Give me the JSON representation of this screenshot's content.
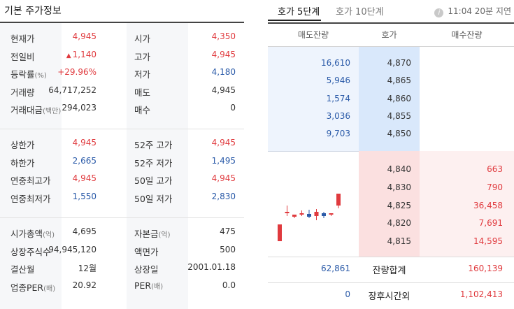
{
  "left": {
    "title": "기본 주가정보",
    "group1": [
      {
        "label": "현재가",
        "value": "4,945",
        "color": "#e03a3e",
        "label2": "시가",
        "value2": "4,350",
        "color2": "#e03a3e"
      },
      {
        "label": "전일비",
        "arrow": "up-arrow-icon",
        "value": "1,140",
        "color": "#e03a3e",
        "label2": "고가",
        "value2": "4,945",
        "color2": "#e03a3e"
      },
      {
        "label": "등락률",
        "unit": "(%)",
        "value": "+29.96%",
        "color": "#e03a3e",
        "label2": "저가",
        "value2": "4,180",
        "color2": "#2a5aa8"
      },
      {
        "label": "거래량",
        "value": "64,717,252",
        "color": "#333333",
        "label2": "매도",
        "value2": "4,945",
        "color2": "#333333"
      },
      {
        "label": "거래대금",
        "unit": "(백만)",
        "value": "294,023",
        "color": "#333333",
        "label2": "매수",
        "value2": "0",
        "color2": "#333333"
      }
    ],
    "group2": [
      {
        "label": "상한가",
        "value": "4,945",
        "color": "#e03a3e",
        "label2": "52주 고가",
        "value2": "4,945",
        "color2": "#e03a3e"
      },
      {
        "label": "하한가",
        "value": "2,665",
        "color": "#2a5aa8",
        "label2": "52주 저가",
        "value2": "1,495",
        "color2": "#2a5aa8"
      },
      {
        "label": "연중최고가",
        "value": "4,945",
        "color": "#e03a3e",
        "label2": "50일 고가",
        "value2": "4,945",
        "color2": "#e03a3e"
      },
      {
        "label": "연중최저가",
        "value": "1,550",
        "color": "#2a5aa8",
        "label2": "50일 저가",
        "value2": "2,830",
        "color2": "#2a5aa8"
      }
    ],
    "group3": [
      {
        "label": "시가총액",
        "unit": "(억)",
        "value": "4,695",
        "color": "#333333",
        "label2": "자본금",
        "unit2": "(억)",
        "value2": "475",
        "color2": "#333333"
      },
      {
        "label": "상장주식수",
        "value": "94,945,120",
        "color": "#333333",
        "label2": "액면가",
        "value2": "500",
        "color2": "#333333"
      },
      {
        "label": "결산월",
        "value": "12월",
        "color": "#333333",
        "label2": "상장일",
        "value2": "2001.01.18",
        "color2": "#333333"
      },
      {
        "label": "업종PER",
        "unit": "(배)",
        "value": "20.92",
        "color": "#333333",
        "label2": "PER",
        "unit2": "(배)",
        "value2": "0.0",
        "color2": "#333333"
      }
    ]
  },
  "right": {
    "tabs": [
      "호가 5단계",
      "호가 10단계"
    ],
    "time": "11:04 20분 지연",
    "headers": [
      "매도잔량",
      "호가",
      "매수잔량"
    ],
    "asks": [
      {
        "qty": "16,610",
        "price": "4,870"
      },
      {
        "qty": "5,946",
        "price": "4,865"
      },
      {
        "qty": "1,574",
        "price": "4,860"
      },
      {
        "qty": "3,036",
        "price": "4,855"
      },
      {
        "qty": "9,703",
        "price": "4,850"
      }
    ],
    "bids": [
      {
        "price": "4,840",
        "qty": "663"
      },
      {
        "price": "4,830",
        "qty": "790"
      },
      {
        "price": "4,825",
        "qty": "36,458"
      },
      {
        "price": "4,820",
        "qty": "7,691"
      },
      {
        "price": "4,815",
        "qty": "14,595"
      }
    ],
    "total": {
      "label": "잔량합계",
      "ask": "62,861",
      "bid": "160,139"
    },
    "afterhours": {
      "label": "장후시간외",
      "ask": "0",
      "bid": "1,102,413"
    }
  },
  "colors": {
    "up": "#e03a3e",
    "down": "#2a5aa8",
    "ask_bg": "#eef4fd",
    "bid_bg": "#fdf0f0"
  },
  "candles": [
    {
      "open": 0.02,
      "close": 0.26,
      "high": 0.26,
      "low": 0.02,
      "up": true
    },
    {
      "open": 0.42,
      "close": 0.44,
      "high": 0.53,
      "low": 0.38,
      "up": true
    },
    {
      "open": 0.37,
      "close": 0.4,
      "high": 0.4,
      "low": 0.35,
      "up": true
    },
    {
      "open": 0.4,
      "close": 0.42,
      "high": 0.46,
      "low": 0.38,
      "up": true
    },
    {
      "open": 0.41,
      "close": 0.37,
      "high": 0.47,
      "low": 0.35,
      "up": false
    },
    {
      "open": 0.38,
      "close": 0.44,
      "high": 0.48,
      "low": 0.32,
      "up": true
    },
    {
      "open": 0.42,
      "close": 0.38,
      "high": 0.44,
      "low": 0.35,
      "up": false
    },
    {
      "open": 0.4,
      "close": 0.42,
      "high": 0.42,
      "low": 0.38,
      "up": true
    },
    {
      "open": 0.53,
      "close": 0.7,
      "high": 0.7,
      "low": 0.49,
      "up": true
    }
  ]
}
